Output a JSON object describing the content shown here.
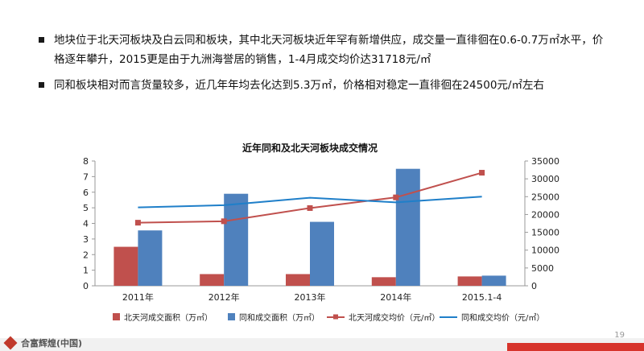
{
  "bullets": [
    "地块位于北天河板块及白云同和板块，其中北天河板块近年罕有新增供应，成交量一直徘徊在0.6-0.7万㎡水平，价格逐年攀升，2015更是由于九洲海誉居的销售，1-4月成交均价达31718元/㎡",
    "同和板块相对而言货量较多，近几年年均去化达到5.3万㎡，价格相对稳定一直徘徊在24500元/㎡左右"
  ],
  "footer": {
    "logo_text": "合富辉煌(中国)",
    "page_number": "19"
  },
  "colors": {
    "bar_red": "#c0504d",
    "bar_blue": "#4f81bd",
    "line_red": "#c0504d",
    "line_blue": "#1f7fc9",
    "corner": "#d7342c"
  },
  "chart_data": {
    "type": "bar",
    "title": "近年同和及北天河板块成交情况",
    "categories": [
      "2011年",
      "2012年",
      "2013年",
      "2014年",
      "2015.1-4"
    ],
    "y_left": {
      "ylim": [
        0,
        8
      ],
      "ticks": [
        "0",
        "1",
        "2",
        "3",
        "4",
        "5",
        "6",
        "7",
        "8"
      ]
    },
    "y_right": {
      "ylim": [
        0,
        35000
      ],
      "ticks": [
        "0",
        "5000",
        "10000",
        "15000",
        "20000",
        "25000",
        "30000",
        "35000"
      ]
    },
    "series": [
      {
        "name": "北天河成交面积（万㎡）",
        "kind": "bar",
        "axis": "left",
        "values": [
          2.5,
          0.75,
          0.75,
          0.55,
          0.6
        ]
      },
      {
        "name": "同和成交面积（万㎡）",
        "kind": "bar",
        "axis": "left",
        "values": [
          3.55,
          5.9,
          4.1,
          7.5,
          0.65
        ]
      },
      {
        "name": "北天河成交均价（元/㎡）",
        "kind": "line-marker",
        "axis": "right",
        "values": [
          17700,
          18100,
          21800,
          24800,
          31718
        ]
      },
      {
        "name": "同和成交均价（元/㎡）",
        "kind": "line",
        "axis": "right",
        "values": [
          22000,
          22600,
          24700,
          23400,
          25000
        ]
      }
    ]
  }
}
